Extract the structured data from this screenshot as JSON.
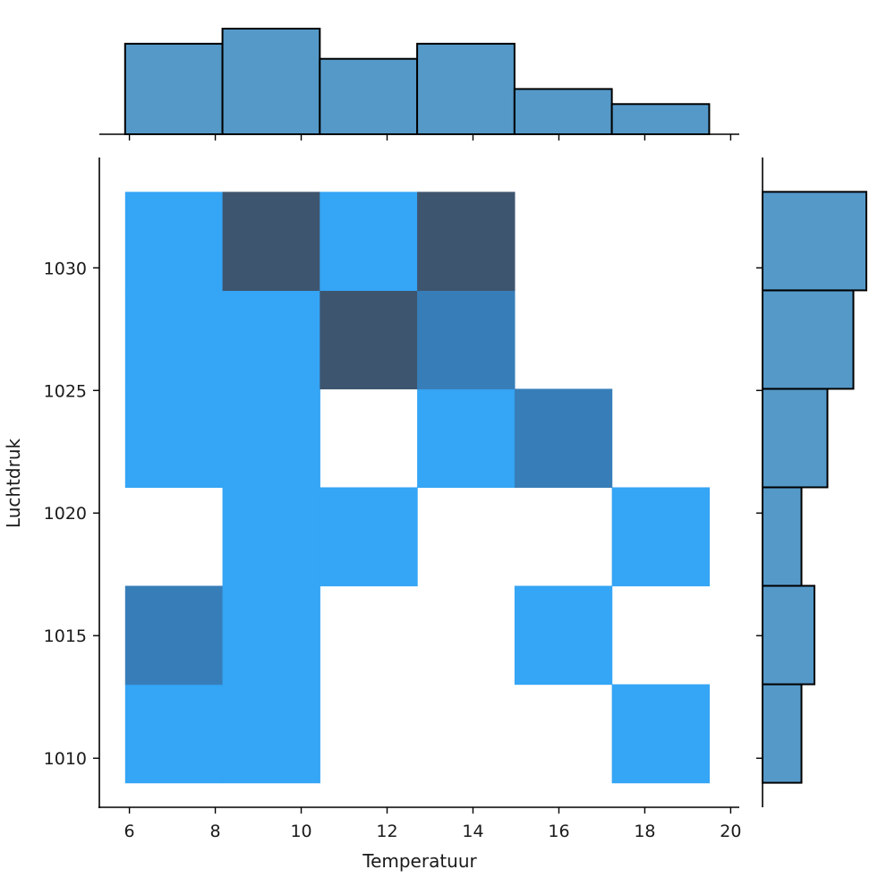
{
  "chart_data": {
    "type": "heatmap",
    "subtype": "joint histogram with marginal histograms",
    "title": "",
    "xlabel": "Temperatuur",
    "ylabel": "Luchtdruk",
    "x_ticks": [
      6,
      8,
      10,
      12,
      14,
      16,
      18,
      20
    ],
    "y_ticks": [
      1010,
      1015,
      1020,
      1025,
      1030
    ],
    "xlim": [
      5.3,
      20.2
    ],
    "ylim": [
      1008.0,
      1034.5
    ],
    "x_bin_edges": [
      5.9,
      8.167,
      10.433,
      12.7,
      14.967,
      17.233,
      19.5
    ],
    "y_bin_edges": [
      1009.0,
      1013.017,
      1017.033,
      1021.05,
      1025.067,
      1029.083,
      1033.1
    ],
    "cells": [
      {
        "x_bin": 0,
        "y_bin": 0,
        "level": 1
      },
      {
        "x_bin": 1,
        "y_bin": 0,
        "level": 1
      },
      {
        "x_bin": 5,
        "y_bin": 0,
        "level": 1
      },
      {
        "x_bin": 0,
        "y_bin": 1,
        "level": 2
      },
      {
        "x_bin": 1,
        "y_bin": 1,
        "level": 1
      },
      {
        "x_bin": 4,
        "y_bin": 1,
        "level": 1
      },
      {
        "x_bin": 1,
        "y_bin": 2,
        "level": 1
      },
      {
        "x_bin": 2,
        "y_bin": 2,
        "level": 1
      },
      {
        "x_bin": 5,
        "y_bin": 2,
        "level": 1
      },
      {
        "x_bin": 0,
        "y_bin": 3,
        "level": 1
      },
      {
        "x_bin": 1,
        "y_bin": 3,
        "level": 1
      },
      {
        "x_bin": 3,
        "y_bin": 3,
        "level": 1
      },
      {
        "x_bin": 4,
        "y_bin": 3,
        "level": 2
      },
      {
        "x_bin": 0,
        "y_bin": 4,
        "level": 1
      },
      {
        "x_bin": 1,
        "y_bin": 4,
        "level": 1
      },
      {
        "x_bin": 2,
        "y_bin": 4,
        "level": 3
      },
      {
        "x_bin": 3,
        "y_bin": 4,
        "level": 2
      },
      {
        "x_bin": 0,
        "y_bin": 5,
        "level": 1
      },
      {
        "x_bin": 1,
        "y_bin": 5,
        "level": 3
      },
      {
        "x_bin": 2,
        "y_bin": 5,
        "level": 1
      },
      {
        "x_bin": 3,
        "y_bin": 5,
        "level": 3
      }
    ],
    "marginal_x_counts": [
      6,
      7,
      5,
      6,
      3,
      2
    ],
    "marginal_y_counts": [
      3,
      4,
      3,
      5,
      7,
      8
    ],
    "colors": {
      "level_1": "#35a5f5",
      "level_2": "#377eb9",
      "level_3": "#3e556f",
      "marginal_fill": "#5599c8",
      "marginal_edge": "#000000",
      "axis": "#000000"
    }
  }
}
